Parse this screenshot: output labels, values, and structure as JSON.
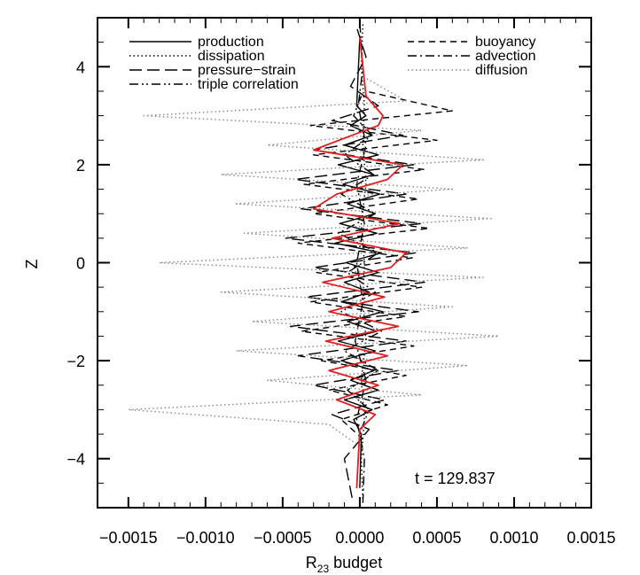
{
  "chart_data": {
    "type": "line",
    "xlabel_main": "R",
    "xlabel_sub": "23",
    "xlabel_rest": " budget",
    "ylabel": "Z",
    "xlim": [
      -0.0017,
      0.0015
    ],
    "ylim": [
      -5,
      5
    ],
    "x_ticks": [
      -0.0015,
      -0.001,
      -0.0005,
      0.0,
      0.0005,
      0.001,
      0.0015
    ],
    "x_tick_labels": [
      "−0.0015",
      "−0.0010",
      "−0.0005",
      "0.0000",
      "0.0005",
      "0.0010",
      "0.0015"
    ],
    "y_ticks": [
      -4,
      -2,
      0,
      2,
      4
    ],
    "y_tick_labels": [
      "−4",
      "−2",
      "0",
      "2",
      "4"
    ],
    "annotation": "t  =  129.837",
    "legend": [
      {
        "label": "production",
        "style": "solid",
        "color": "#000000"
      },
      {
        "label": "dissipation",
        "style": "dotted",
        "color": "#000000"
      },
      {
        "label": "pressure−strain",
        "style": "longdash",
        "color": "#000000"
      },
      {
        "label": "triple correlation",
        "style": "dashdotdot",
        "color": "#000000"
      },
      {
        "label": "buoyancy",
        "style": "dashed",
        "color": "#000000"
      },
      {
        "label": "advection",
        "style": "dashdot",
        "color": "#000000"
      },
      {
        "label": "diffusion",
        "style": "dotted-gray",
        "color": "#888888"
      }
    ],
    "red_curve": {
      "color": "#e02020"
    },
    "series": [
      {
        "name": "production",
        "style": "solid",
        "color": "#000000",
        "z": [
          -4.6,
          -3.5,
          -3.2,
          -3.0,
          -2.8,
          -2.6,
          -2.4,
          -2.2,
          -2.0,
          -1.8,
          -1.6,
          -1.4,
          -1.2,
          -1.0,
          -0.8,
          -0.6,
          -0.4,
          -0.2,
          0.0,
          0.2,
          0.4,
          0.6,
          0.8,
          1.0,
          1.2,
          1.4,
          1.6,
          1.8,
          2.0,
          2.2,
          2.4,
          2.6,
          2.8,
          3.0,
          3.2,
          4.6
        ],
        "x": [
          0.0,
          1e-05,
          -4e-05,
          8e-05,
          -0.0001,
          0.00012,
          -6e-05,
          9e-05,
          -0.00012,
          0.0001,
          -0.00014,
          0.00011,
          -8e-05,
          0.00015,
          -0.00012,
          6e-05,
          -0.0001,
          0.00012,
          -9e-05,
          0.00014,
          -0.00016,
          0.00011,
          -0.00013,
          0.0001,
          -8e-05,
          0.00013,
          -0.00011,
          9e-05,
          -0.00014,
          0.00012,
          -0.0001,
          8e-05,
          -6e-05,
          4e-05,
          -2e-05,
          0.0
        ]
      },
      {
        "name": "pressure-strain",
        "style": "longdash",
        "color": "#000000",
        "z": [
          -4.8,
          -4.0,
          -3.4,
          -3.1,
          -2.8,
          -2.5,
          -2.2,
          -1.9,
          -1.6,
          -1.3,
          -1.0,
          -0.7,
          -0.4,
          -0.1,
          0.2,
          0.5,
          0.8,
          1.1,
          1.4,
          1.7,
          2.0,
          2.3,
          2.6,
          2.9,
          3.2,
          3.6,
          4.2,
          4.8
        ],
        "x": [
          -5e-05,
          -0.0001,
          6e-05,
          -0.00018,
          0.00016,
          -0.0003,
          0.00025,
          -0.0004,
          0.0003,
          -0.00045,
          0.00038,
          -0.00035,
          0.00042,
          -0.0003,
          0.00036,
          -0.00048,
          0.0004,
          -0.00038,
          0.0003,
          -0.00042,
          0.00035,
          -0.0003,
          0.00028,
          -0.00018,
          0.00012,
          -6e-05,
          4e-05,
          -2e-05
        ]
      },
      {
        "name": "buoyancy",
        "style": "dashed",
        "color": "#000000",
        "z": [
          -3.6,
          -3.2,
          -2.9,
          -2.6,
          -2.3,
          -2.0,
          -1.7,
          -1.4,
          -1.1,
          -0.8,
          -0.5,
          -0.2,
          0.1,
          0.4,
          0.7,
          1.0,
          1.3,
          1.6,
          1.9,
          2.2,
          2.5,
          2.8,
          3.1,
          3.5
        ],
        "x": [
          2e-05,
          -0.00012,
          0.00018,
          -0.0002,
          0.0003,
          -0.00025,
          0.00035,
          -0.00038,
          0.0003,
          -0.00032,
          0.0004,
          -0.00028,
          0.00034,
          -0.0004,
          0.00045,
          -0.0003,
          0.00038,
          -0.00036,
          0.00042,
          -0.0003,
          0.0005,
          -0.00032,
          0.0006,
          4e-05
        ]
      },
      {
        "name": "triple correlation",
        "style": "dashdotdot",
        "color": "#000000",
        "z": [
          -3.4,
          -3.0,
          -2.6,
          -2.2,
          -1.8,
          -1.4,
          -1.0,
          -0.6,
          -0.2,
          0.2,
          0.6,
          1.0,
          1.4,
          1.8,
          2.2,
          2.6,
          3.0,
          3.4
        ],
        "x": [
          1e-05,
          6e-05,
          -8e-05,
          0.00012,
          -0.0001,
          0.00014,
          -0.00012,
          0.0001,
          -8e-05,
          0.00012,
          -0.00014,
          0.0001,
          -0.00012,
          9e-05,
          -0.0001,
          8e-05,
          -4e-05,
          1e-05
        ]
      },
      {
        "name": "advection",
        "style": "dashdot",
        "color": "#000000",
        "z": [
          -4.9,
          -4.0,
          -3.2,
          -2.4,
          -1.6,
          -0.8,
          0.0,
          0.8,
          1.6,
          2.4,
          3.2,
          4.0,
          4.9
        ],
        "x": [
          2e-05,
          3e-05,
          -2e-05,
          4e-05,
          -3e-05,
          2e-05,
          -2e-05,
          3e-05,
          -2e-05,
          4e-05,
          -1e-05,
          2e-05,
          0.0
        ]
      },
      {
        "name": "dissipation",
        "style": "dotted",
        "color": "#000000",
        "z": [
          -4.9,
          -4.0,
          -3.2,
          -2.4,
          -1.6,
          -0.8,
          0.0,
          0.8,
          1.6,
          2.4,
          3.2,
          4.0,
          4.9
        ],
        "x": [
          2e-05,
          1e-05,
          3e-05,
          1e-05,
          4e-05,
          2e-05,
          3e-05,
          1e-05,
          4e-05,
          2e-05,
          3e-05,
          1e-05,
          2e-05
        ]
      },
      {
        "name": "diffusion",
        "style": "dotted-gray",
        "color": "#888888",
        "z": [
          -3.8,
          -3.3,
          -3.0,
          -2.7,
          -2.4,
          -2.1,
          -1.8,
          -1.5,
          -1.2,
          -0.9,
          -0.6,
          -0.3,
          0.0,
          0.3,
          0.6,
          0.9,
          1.2,
          1.5,
          1.8,
          2.1,
          2.4,
          2.7,
          3.0,
          3.3,
          3.8
        ],
        "x": [
          2e-05,
          -0.0002,
          -0.0015,
          0.0004,
          -0.0006,
          0.0007,
          -0.0008,
          0.0009,
          -0.0007,
          0.0006,
          -0.0009,
          0.0008,
          -0.0013,
          0.0007,
          -0.00075,
          0.00085,
          -0.0008,
          0.0006,
          -0.0009,
          0.0008,
          -0.0006,
          0.0004,
          -0.0014,
          0.0003,
          2e-05
        ]
      },
      {
        "name": "",
        "style": "solid",
        "color": "#e02020",
        "z": [
          -4.6,
          -3.4,
          -3.1,
          -2.8,
          -2.5,
          -2.2,
          -1.9,
          -1.6,
          -1.3,
          -1.0,
          -0.7,
          -0.4,
          -0.1,
          0.2,
          0.5,
          0.8,
          1.1,
          1.4,
          1.7,
          2.0,
          2.3,
          2.6,
          2.8,
          3.0,
          3.4,
          4.6
        ],
        "x": [
          -2e-05,
          0.0,
          0.0001,
          -0.00015,
          0.00012,
          -0.0002,
          0.00018,
          -0.00022,
          0.00025,
          -0.0002,
          0.00016,
          -0.00024,
          0.0002,
          0.0003,
          -0.00018,
          0.00026,
          -0.0003,
          -0.00015,
          0.00018,
          0.00028,
          -0.0003,
          -5e-05,
          0.00012,
          0.00015,
          4e-05,
          0.0
        ]
      }
    ]
  }
}
